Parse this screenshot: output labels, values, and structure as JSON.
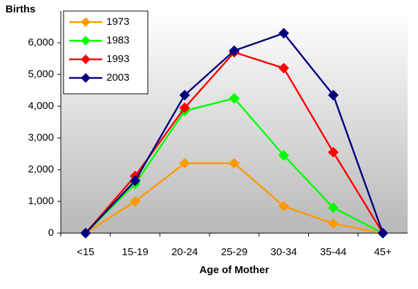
{
  "chart_data": {
    "type": "line",
    "y_label": "Births",
    "x_label": "Age of Mother",
    "categories": [
      "<15",
      "15-19",
      "20-24",
      "25-29",
      "30-34",
      "35-44",
      "45+"
    ],
    "series": [
      {
        "name": "1973",
        "color": "#ff9900",
        "values": [
          0,
          1000,
          2200,
          2200,
          850,
          300,
          0
        ]
      },
      {
        "name": "1983",
        "color": "#00ff00",
        "values": [
          0,
          1550,
          3850,
          4250,
          2450,
          800,
          0
        ]
      },
      {
        "name": "1993",
        "color": "#ff0000",
        "values": [
          0,
          1800,
          3950,
          5700,
          5200,
          2550,
          0
        ]
      },
      {
        "name": "2003",
        "color": "#000080",
        "values": [
          0,
          1650,
          4350,
          5750,
          6300,
          4350,
          0
        ]
      }
    ],
    "ylim": [
      0,
      7000
    ],
    "yticks": [
      0,
      {
        "value": 1000,
        "label": "1,000"
      },
      {
        "value": 2000,
        "label": "2,000"
      },
      {
        "value": 3000,
        "label": "3,000"
      },
      {
        "value": 4000,
        "label": "4,000"
      },
      {
        "value": 5000,
        "label": "5,000"
      },
      {
        "value": 6000,
        "label": "6,000"
      }
    ],
    "legend": "top-left"
  }
}
